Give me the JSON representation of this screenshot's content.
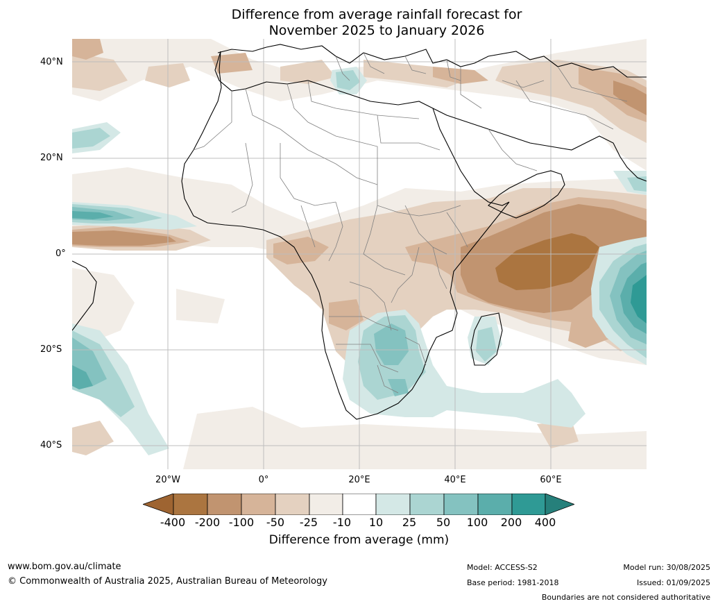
{
  "title_line1": "Difference from average rainfall forecast for",
  "title_line2": "November 2025 to January 2026",
  "lat_labels": [
    "40°N",
    "20°N",
    "0°",
    "20°S",
    "40°S"
  ],
  "lon_labels": [
    "20°W",
    "0°",
    "20°E",
    "40°E",
    "60°E"
  ],
  "colorbar": {
    "label": "Difference from average (mm)",
    "ticks": [
      "-400",
      "-200",
      "-100",
      "-50",
      "-25",
      "-10",
      "10",
      "25",
      "50",
      "100",
      "200",
      "400"
    ],
    "colors": [
      "#9e6431",
      "#ab7540",
      "#c19470",
      "#d6b499",
      "#e4d1c0",
      "#f2ede7",
      "#ffffff",
      "#d4e8e6",
      "#abd5d2",
      "#84c2c0",
      "#5baeab",
      "#2f9a95",
      "#26807b"
    ]
  },
  "footer": {
    "website": "www.bom.gov.au/climate",
    "copyright": "© Commonwealth of Australia 2025, Australian Bureau of Meteorology",
    "model": "Model: ACCESS-S2",
    "base_period": "Base period: 1981-2018",
    "model_run": "Model run: 30/08/2025",
    "issued": "Issued: 01/09/2025",
    "disclaimer": "Boundaries are not considered authoritative"
  }
}
